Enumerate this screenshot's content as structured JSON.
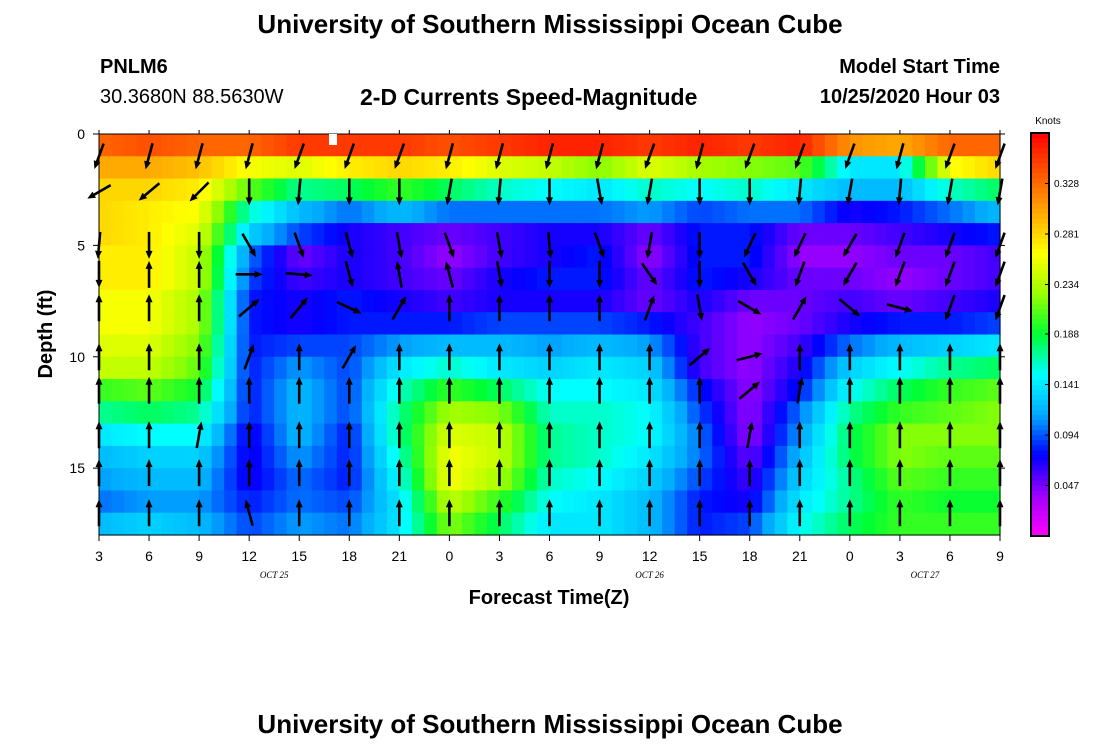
{
  "page": {
    "top_title": "University of Southern Mississippi Ocean Cube",
    "bottom_title": "University of Southern Mississippi Ocean Cube",
    "station_id": "PNLM6",
    "coordinates": "30.3680N 88.5630W",
    "model_start_label": "Model Start Time",
    "model_start_value": "10/25/2020 Hour 03"
  },
  "colors": {
    "scale": [
      "#ff00ff",
      "#a000ff",
      "#0000ff",
      "#00aaff",
      "#00ffff",
      "#00ff33",
      "#99ff00",
      "#ffff00",
      "#ffaa00",
      "#ff5500",
      "#ff0000"
    ],
    "arrow": "#000000"
  },
  "chart_data": {
    "type": "heatmap",
    "title": "2-D Currents Speed-Magnitude",
    "xlabel": "Forecast Time(Z)",
    "ylabel": "Depth (ft)",
    "x_ticks": [
      "3",
      "6",
      "9",
      "12",
      "15",
      "18",
      "21",
      "0",
      "3",
      "6",
      "9",
      "12",
      "15",
      "18",
      "21",
      "0",
      "3",
      "6",
      "9"
    ],
    "day_labels": [
      {
        "text": "OCT 25",
        "at_tick": 3.5
      },
      {
        "text": "OCT 26",
        "at_tick": 11
      },
      {
        "text": "OCT 27",
        "at_tick": 16.5
      }
    ],
    "y_ticks": [
      "0",
      "5",
      "10",
      "15"
    ],
    "y_tick_values": [
      0,
      5,
      10,
      15
    ],
    "ylim": [
      0,
      18
    ],
    "x_hours_range": [
      0,
      54
    ],
    "colorbar_label": "Knots",
    "colorbar_range": [
      0,
      0.375
    ],
    "colorbar_ticks": [
      "0.328",
      "0.281",
      "0.234",
      "0.188",
      "0.141",
      "0.094",
      "0.047"
    ],
    "colorbar_tick_values": [
      0.328,
      0.281,
      0.234,
      0.188,
      0.141,
      0.094,
      0.047
    ],
    "speed_rows": [
      [
        0.33,
        0.34,
        0.33,
        0.33,
        0.35,
        0.35,
        0.35,
        0.34,
        0.35,
        0.36,
        0.36,
        0.35,
        0.36,
        0.35,
        0.36,
        0.31,
        0.3,
        0.33,
        0.33
      ],
      [
        0.3,
        0.3,
        0.29,
        0.26,
        0.25,
        0.27,
        0.28,
        0.27,
        0.25,
        0.24,
        0.22,
        0.25,
        0.23,
        0.22,
        0.21,
        0.14,
        0.14,
        0.26,
        0.28
      ],
      [
        0.28,
        0.28,
        0.27,
        0.21,
        0.17,
        0.18,
        0.2,
        0.18,
        0.16,
        0.15,
        0.14,
        0.16,
        0.15,
        0.16,
        0.14,
        0.12,
        0.12,
        0.16,
        0.18
      ],
      [
        0.28,
        0.27,
        0.26,
        0.16,
        0.12,
        0.1,
        0.12,
        0.1,
        0.1,
        0.1,
        0.1,
        0.11,
        0.09,
        0.1,
        0.1,
        0.07,
        0.08,
        0.1,
        0.12
      ],
      [
        0.28,
        0.27,
        0.25,
        0.13,
        0.09,
        0.07,
        0.06,
        0.05,
        0.06,
        0.07,
        0.07,
        0.05,
        0.08,
        0.08,
        0.05,
        0.05,
        0.06,
        0.07,
        0.08
      ],
      [
        0.27,
        0.27,
        0.24,
        0.1,
        0.05,
        0.07,
        0.06,
        0.04,
        0.06,
        0.07,
        0.08,
        0.04,
        0.08,
        0.08,
        0.04,
        0.04,
        0.05,
        0.05,
        0.06
      ],
      [
        0.27,
        0.27,
        0.24,
        0.09,
        0.06,
        0.07,
        0.06,
        0.05,
        0.07,
        0.08,
        0.08,
        0.05,
        0.08,
        0.07,
        0.05,
        0.05,
        0.04,
        0.05,
        0.06
      ],
      [
        0.26,
        0.26,
        0.23,
        0.08,
        0.07,
        0.08,
        0.07,
        0.06,
        0.07,
        0.07,
        0.07,
        0.05,
        0.07,
        0.05,
        0.05,
        0.06,
        0.05,
        0.06,
        0.07
      ],
      [
        0.26,
        0.26,
        0.23,
        0.08,
        0.07,
        0.08,
        0.08,
        0.08,
        0.09,
        0.09,
        0.09,
        0.08,
        0.06,
        0.04,
        0.05,
        0.07,
        0.08,
        0.08,
        0.09
      ],
      [
        0.25,
        0.25,
        0.22,
        0.08,
        0.09,
        0.09,
        0.11,
        0.12,
        0.12,
        0.11,
        0.12,
        0.11,
        0.06,
        0.04,
        0.06,
        0.1,
        0.12,
        0.13,
        0.14
      ],
      [
        0.24,
        0.24,
        0.21,
        0.08,
        0.11,
        0.09,
        0.14,
        0.16,
        0.14,
        0.13,
        0.14,
        0.13,
        0.06,
        0.04,
        0.07,
        0.13,
        0.15,
        0.17,
        0.18
      ],
      [
        0.2,
        0.21,
        0.19,
        0.08,
        0.12,
        0.09,
        0.16,
        0.2,
        0.18,
        0.15,
        0.15,
        0.14,
        0.08,
        0.04,
        0.08,
        0.15,
        0.18,
        0.2,
        0.21
      ],
      [
        0.17,
        0.18,
        0.17,
        0.08,
        0.12,
        0.09,
        0.17,
        0.23,
        0.22,
        0.16,
        0.16,
        0.15,
        0.09,
        0.04,
        0.1,
        0.17,
        0.2,
        0.21,
        0.22
      ],
      [
        0.14,
        0.15,
        0.15,
        0.07,
        0.12,
        0.08,
        0.17,
        0.25,
        0.24,
        0.17,
        0.16,
        0.15,
        0.1,
        0.04,
        0.11,
        0.18,
        0.22,
        0.22,
        0.22
      ],
      [
        0.12,
        0.13,
        0.13,
        0.07,
        0.11,
        0.08,
        0.16,
        0.26,
        0.24,
        0.17,
        0.16,
        0.14,
        0.1,
        0.05,
        0.12,
        0.18,
        0.22,
        0.21,
        0.21
      ],
      [
        0.11,
        0.12,
        0.12,
        0.07,
        0.1,
        0.08,
        0.15,
        0.26,
        0.23,
        0.16,
        0.15,
        0.13,
        0.09,
        0.06,
        0.13,
        0.17,
        0.21,
        0.2,
        0.2
      ],
      [
        0.1,
        0.11,
        0.11,
        0.08,
        0.1,
        0.09,
        0.14,
        0.24,
        0.2,
        0.15,
        0.14,
        0.12,
        0.08,
        0.07,
        0.14,
        0.17,
        0.2,
        0.19,
        0.19
      ],
      [
        0.12,
        0.13,
        0.12,
        0.09,
        0.11,
        0.1,
        0.14,
        0.22,
        0.18,
        0.14,
        0.14,
        0.12,
        0.08,
        0.09,
        0.15,
        0.18,
        0.2,
        0.2,
        0.2
      ]
    ],
    "vector_depths": [
      1,
      2.6,
      5,
      6.3,
      7.8,
      10,
      11.5,
      13.5,
      15.2,
      17
    ],
    "vector_dirs_deg": [
      [
        200,
        195,
        195,
        195,
        200,
        200,
        200,
        195,
        195,
        195,
        195,
        200,
        195,
        200,
        200,
        200,
        195,
        200,
        200
      ],
      [
        240,
        230,
        225,
        180,
        185,
        180,
        180,
        190,
        185,
        180,
        170,
        190,
        180,
        180,
        185,
        190,
        185,
        190,
        190
      ],
      [
        185,
        180,
        180,
        150,
        160,
        165,
        170,
        160,
        170,
        175,
        160,
        190,
        180,
        205,
        205,
        210,
        200,
        200,
        200
      ],
      [
        180,
        0,
        0,
        90,
        95,
        165,
        350,
        345,
        170,
        180,
        180,
        145,
        180,
        150,
        200,
        210,
        200,
        200,
        200
      ],
      [
        0,
        0,
        0,
        50,
        40,
        115,
        30,
        0,
        0,
        0,
        0,
        20,
        170,
        120,
        30,
        130,
        105,
        200,
        200
      ],
      [
        0,
        0,
        0,
        20,
        0,
        30,
        0,
        0,
        0,
        0,
        0,
        0,
        50,
        75,
        0,
        0,
        0,
        0,
        0
      ],
      [
        0,
        0,
        0,
        0,
        0,
        0,
        0,
        0,
        0,
        0,
        0,
        0,
        0,
        50,
        10,
        0,
        0,
        0,
        0
      ],
      [
        0,
        0,
        10,
        0,
        0,
        0,
        0,
        0,
        0,
        0,
        0,
        0,
        0,
        10,
        0,
        0,
        0,
        0,
        0
      ],
      [
        0,
        0,
        0,
        0,
        0,
        0,
        0,
        0,
        0,
        0,
        0,
        0,
        0,
        0,
        0,
        0,
        0,
        0,
        0
      ],
      [
        0,
        0,
        0,
        345,
        0,
        0,
        0,
        0,
        0,
        0,
        0,
        0,
        0,
        0,
        0,
        0,
        0,
        0,
        0
      ]
    ]
  }
}
